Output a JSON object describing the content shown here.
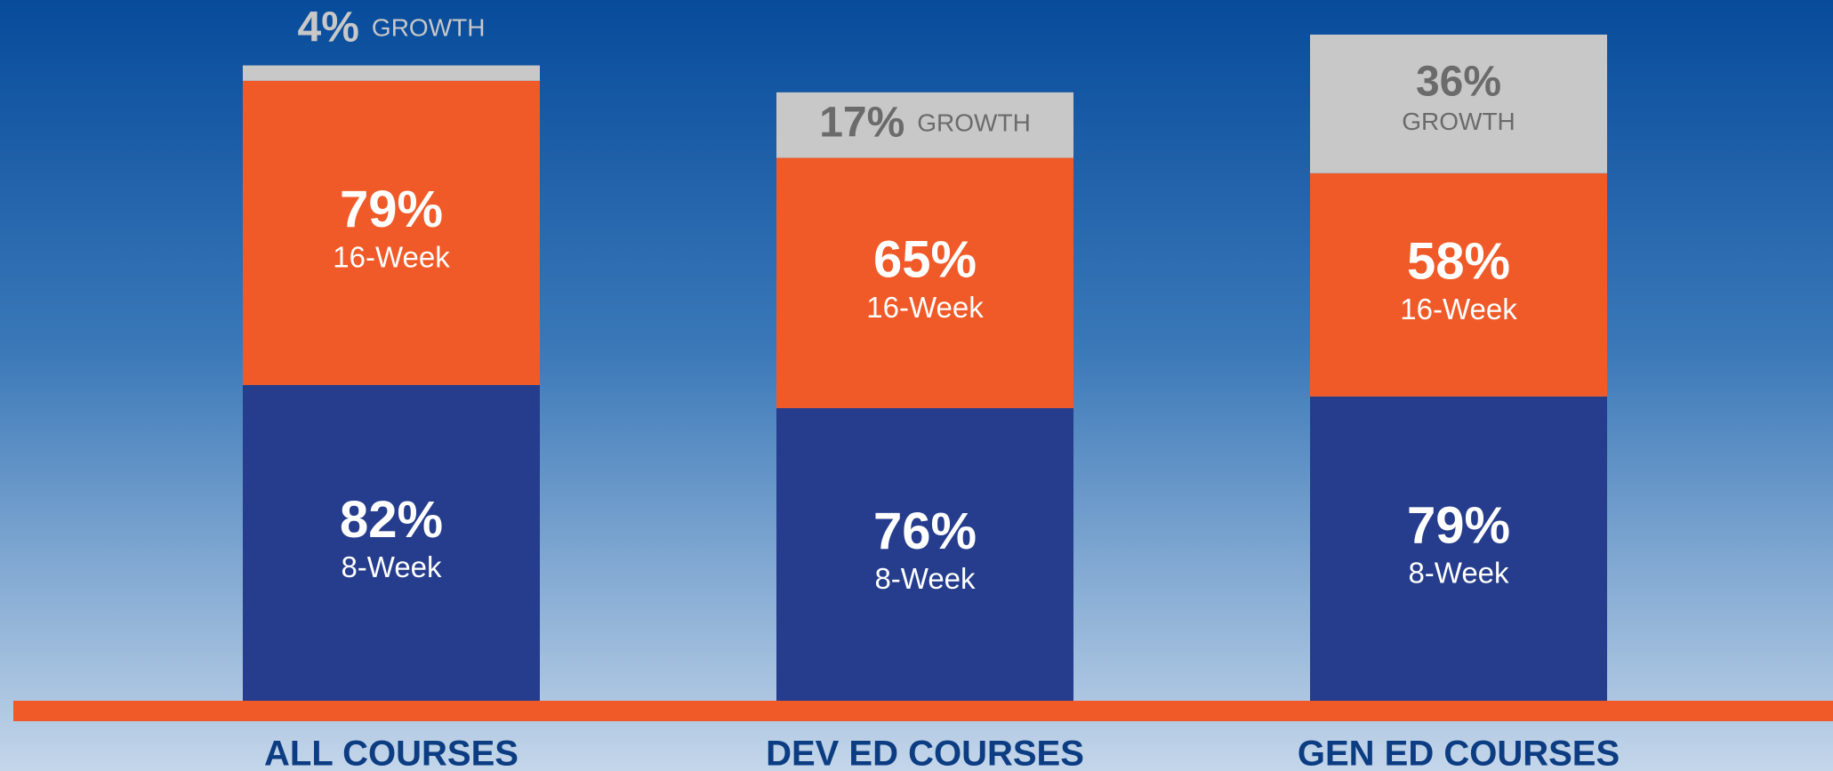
{
  "chart_data": {
    "type": "stacked_bar",
    "categories": [
      "ALL COURSES",
      "DEV ED COURSES",
      "GEN ED COURSES"
    ],
    "series": [
      {
        "name": "8-Week",
        "color": "#253d8c",
        "values": [
          82,
          76,
          79
        ],
        "value_labels": [
          "82%",
          "76%",
          "79%"
        ]
      },
      {
        "name": "16-Week",
        "color": "#f05a28",
        "values": [
          79,
          65,
          58
        ],
        "value_labels": [
          "79%",
          "65%",
          "58%"
        ]
      },
      {
        "name": "GROWTH",
        "color": "#c8c8c8",
        "values": [
          4,
          17,
          36
        ],
        "value_labels": [
          "4%",
          "17%",
          "36%"
        ]
      }
    ]
  }
}
